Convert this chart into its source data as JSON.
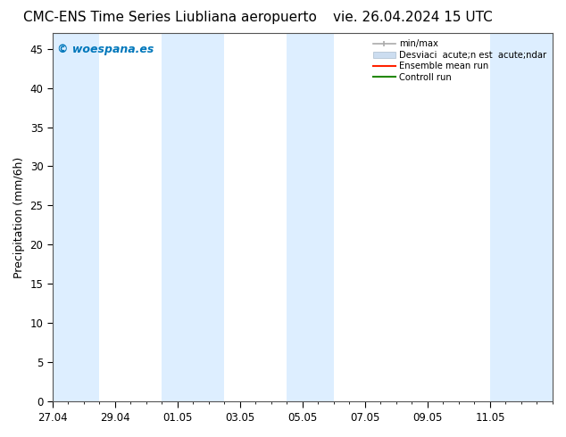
{
  "title_left": "CMC-ENS Time Series Liubliana aeropuerto",
  "title_right": "vie. 26.04.2024 15 UTC",
  "ylabel": "Precipitation (mm/6h)",
  "watermark": "© woespana.es",
  "watermark_color": "#0077bb",
  "ylim": [
    0,
    47
  ],
  "yticks": [
    0,
    5,
    10,
    15,
    20,
    25,
    30,
    35,
    40,
    45
  ],
  "xtick_labels": [
    "27.04",
    "29.04",
    "01.05",
    "03.05",
    "05.05",
    "07.05",
    "09.05",
    "11.05"
  ],
  "xtick_positions": [
    0,
    2,
    4,
    6,
    8,
    10,
    12,
    14
  ],
  "xlim": [
    0,
    16
  ],
  "background_color": "#ffffff",
  "plot_bg_color": "#ffffff",
  "shade_color": "#ddeeff",
  "shade_regions": [
    [
      0.0,
      1.5
    ],
    [
      3.5,
      5.5
    ],
    [
      7.5,
      9.0
    ],
    [
      14.0,
      16.0
    ]
  ],
  "legend_label_0": "min/max",
  "legend_label_1": "Desviaci  acute;n est  acute;ndar",
  "legend_label_2": "Ensemble mean run",
  "legend_label_3": "Controll run",
  "legend_color_0": "#aaaaaa",
  "legend_color_1": "#ccddf0",
  "legend_color_2": "#ff2200",
  "legend_color_3": "#228800",
  "title_fontsize": 11,
  "axis_fontsize": 9,
  "tick_fontsize": 8.5,
  "watermark_fontsize": 9
}
